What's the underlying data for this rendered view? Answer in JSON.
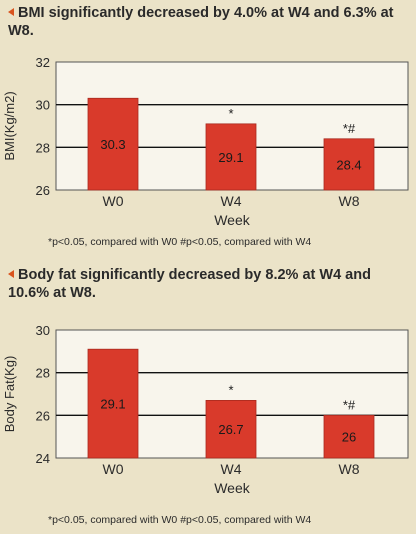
{
  "colors": {
    "bar": "#d93a2b",
    "bar_edge": "#a82a1e",
    "gridline": "#111111",
    "bullet": "#d9541e",
    "background": "#ebe3c8",
    "plot_background": "#f8f5ec"
  },
  "icons": {
    "heading_bullet": "triangle-left-bullet-icon"
  },
  "chart_data": [
    {
      "type": "bar",
      "heading": "BMI significantly decreased by 4.0% at W4 and 6.3% at W8.",
      "categories": [
        "W0",
        "W4",
        "W8"
      ],
      "values": [
        30.3,
        29.1,
        28.4
      ],
      "value_labels": [
        "30.3",
        "29.1",
        "28.4"
      ],
      "significance": [
        "",
        "*",
        "*#"
      ],
      "xlabel": "Week",
      "ylabel": "BMI(Kg/m2)",
      "ylim": [
        26,
        32
      ],
      "yticks": [
        26,
        28,
        30,
        32
      ],
      "grid": true,
      "footnote": "*p<0.05, compared with W0   #p<0.05, compared with W4"
    },
    {
      "type": "bar",
      "heading": "Body fat significantly decreased by 8.2% at W4 and 10.6% at W8.",
      "categories": [
        "W0",
        "W4",
        "W8"
      ],
      "values": [
        29.1,
        26.7,
        26
      ],
      "value_labels": [
        "29.1",
        "26.7",
        "26"
      ],
      "significance": [
        "",
        "*",
        "*#"
      ],
      "xlabel": "Week",
      "ylabel": "Body Fat(Kg)",
      "ylim": [
        24,
        30
      ],
      "yticks": [
        24,
        26,
        28,
        30
      ],
      "grid": true,
      "footnote": "*p<0.05, compared with W0  #p<0.05, compared with W4"
    }
  ]
}
